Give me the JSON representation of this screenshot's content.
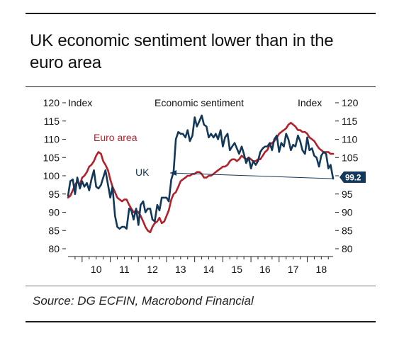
{
  "title": "UK economic sentiment lower than in the euro area",
  "source": "Source: DG ECFIN, Macrobond Financial",
  "colors": {
    "uk": "#12385a",
    "euro_area": "#b2202a",
    "axis": "#222222",
    "tag_bg": "#12385a"
  },
  "chart_data": {
    "type": "line",
    "subtitle": "Economic sentiment",
    "left_unit_label": "Index",
    "right_unit_label": "Index",
    "ylim": [
      80,
      120
    ],
    "yticks": [
      80,
      85,
      90,
      95,
      100,
      105,
      110,
      115,
      120
    ],
    "xlim": [
      2009.5,
      2018.92
    ],
    "xtick_labels": [
      "10",
      "11",
      "12",
      "13",
      "14",
      "15",
      "16",
      "17",
      "18"
    ],
    "grid": false,
    "last_value_tag": "99.2",
    "series": [
      {
        "name": "UK",
        "color": "#12385a",
        "x": [
          2009.5,
          2009.58,
          2009.67,
          2009.75,
          2009.83,
          2009.92,
          2010.0,
          2010.08,
          2010.17,
          2010.25,
          2010.33,
          2010.42,
          2010.5,
          2010.58,
          2010.67,
          2010.75,
          2010.83,
          2010.92,
          2011.0,
          2011.08,
          2011.17,
          2011.25,
          2011.33,
          2011.42,
          2011.5,
          2011.58,
          2011.67,
          2011.75,
          2011.83,
          2011.92,
          2012.0,
          2012.08,
          2012.17,
          2012.25,
          2012.33,
          2012.42,
          2012.5,
          2012.58,
          2012.67,
          2012.75,
          2012.83,
          2012.92,
          2013.0,
          2013.08,
          2013.17,
          2013.25,
          2013.33,
          2013.42,
          2013.5,
          2013.58,
          2013.67,
          2013.75,
          2013.83,
          2013.92,
          2014.0,
          2014.08,
          2014.17,
          2014.25,
          2014.33,
          2014.42,
          2014.5,
          2014.58,
          2014.67,
          2014.75,
          2014.83,
          2014.92,
          2015.0,
          2015.08,
          2015.17,
          2015.25,
          2015.33,
          2015.42,
          2015.5,
          2015.58,
          2015.67,
          2015.75,
          2015.83,
          2015.92,
          2016.0,
          2016.08,
          2016.17,
          2016.25,
          2016.33,
          2016.42,
          2016.5,
          2016.58,
          2016.67,
          2016.75,
          2016.83,
          2016.92,
          2017.0,
          2017.08,
          2017.17,
          2017.25,
          2017.33,
          2017.42,
          2017.5,
          2017.58,
          2017.67,
          2017.75,
          2017.83,
          2017.92,
          2018.0,
          2018.08,
          2018.17,
          2018.25,
          2018.33,
          2018.42,
          2018.5,
          2018.58,
          2018.67,
          2018.75,
          2018.83,
          2018.92
        ],
        "y": [
          94.5,
          98.5,
          99,
          95,
          99.5,
          96.5,
          98.5,
          97,
          98,
          96,
          99,
          101.5,
          97,
          96.5,
          97.5,
          99.5,
          101.5,
          97.5,
          94,
          97,
          89,
          86,
          85.5,
          86,
          86,
          85.5,
          91,
          90.5,
          88,
          91,
          86.5,
          92,
          93,
          90,
          91,
          91,
          88,
          87.5,
          92,
          90.5,
          94,
          94,
          94,
          93,
          99,
          101,
          110,
          112,
          111.5,
          111.5,
          110.5,
          112.5,
          109.5,
          111,
          116,
          113.5,
          115,
          116.5,
          114,
          113.5,
          110.5,
          111.5,
          110.5,
          111.5,
          110,
          112.5,
          108,
          110.5,
          111.5,
          107,
          108,
          109,
          107.5,
          106,
          108,
          106,
          103.5,
          105,
          102,
          104,
          103,
          104,
          106.5,
          107.5,
          108,
          108,
          109,
          107,
          110,
          111,
          106.5,
          109,
          108,
          111.5,
          110,
          107,
          108.5,
          108,
          111,
          109.5,
          107,
          106,
          110.5,
          107,
          107.5,
          105.5,
          105,
          102.5,
          105.5,
          106.5,
          106,
          102,
          103,
          99.2
        ]
      },
      {
        "name": "Euro area",
        "color": "#b2202a",
        "x": [
          2009.5,
          2009.58,
          2009.67,
          2009.75,
          2009.83,
          2009.92,
          2010.0,
          2010.08,
          2010.17,
          2010.25,
          2010.33,
          2010.42,
          2010.5,
          2010.58,
          2010.67,
          2010.75,
          2010.83,
          2010.92,
          2011.0,
          2011.08,
          2011.17,
          2011.25,
          2011.33,
          2011.42,
          2011.5,
          2011.58,
          2011.67,
          2011.75,
          2011.83,
          2011.92,
          2012.0,
          2012.08,
          2012.17,
          2012.25,
          2012.33,
          2012.42,
          2012.5,
          2012.58,
          2012.67,
          2012.75,
          2012.83,
          2012.92,
          2013.0,
          2013.08,
          2013.17,
          2013.25,
          2013.33,
          2013.42,
          2013.5,
          2013.58,
          2013.67,
          2013.75,
          2013.83,
          2013.92,
          2014.0,
          2014.08,
          2014.17,
          2014.25,
          2014.33,
          2014.42,
          2014.5,
          2014.58,
          2014.67,
          2014.75,
          2014.83,
          2014.92,
          2015.0,
          2015.08,
          2015.17,
          2015.25,
          2015.33,
          2015.42,
          2015.5,
          2015.58,
          2015.67,
          2015.75,
          2015.83,
          2015.92,
          2016.0,
          2016.08,
          2016.17,
          2016.25,
          2016.33,
          2016.42,
          2016.5,
          2016.58,
          2016.67,
          2016.75,
          2016.83,
          2016.92,
          2017.0,
          2017.08,
          2017.17,
          2017.25,
          2017.33,
          2017.42,
          2017.5,
          2017.58,
          2017.67,
          2017.75,
          2017.83,
          2017.92,
          2018.0,
          2018.08,
          2018.17,
          2018.25,
          2018.33,
          2018.42,
          2018.5,
          2018.58,
          2018.67,
          2018.75,
          2018.83,
          2018.92
        ],
        "y": [
          94,
          94.5,
          96,
          97.5,
          98.5,
          97.5,
          99.5,
          100,
          101,
          102.5,
          103,
          104,
          105.5,
          106.5,
          106,
          104,
          103,
          101.5,
          99,
          97,
          95.5,
          94,
          93.5,
          93,
          93.5,
          93.5,
          92,
          91,
          90,
          90.5,
          90,
          89,
          87.5,
          86,
          85,
          84.5,
          86,
          87,
          87.5,
          88.5,
          87,
          87.5,
          89,
          90.5,
          93.5,
          95,
          95.5,
          97,
          98.5,
          99,
          99.5,
          100,
          100,
          100.5,
          100.5,
          101,
          101,
          100.5,
          99.5,
          99.5,
          100,
          100,
          100.5,
          101,
          101.5,
          102,
          102.5,
          102.5,
          103,
          104,
          104.5,
          104.5,
          104,
          104.5,
          105.5,
          105,
          104.5,
          105,
          104.5,
          104,
          104,
          104.5,
          104.5,
          105.5,
          106.5,
          107,
          108.5,
          109,
          109.5,
          110.5,
          111.5,
          112,
          112.5,
          113,
          114,
          114.5,
          114,
          113.5,
          112.5,
          112.5,
          112,
          112,
          111.5,
          110.5,
          110,
          109.5,
          108.5,
          107.5,
          107,
          106.5,
          106.5,
          106.5,
          106,
          106
        ]
      }
    ],
    "annotations": [
      {
        "text": "Euro area",
        "series": "Euro area"
      },
      {
        "text": "UK",
        "series": "UK"
      }
    ]
  }
}
